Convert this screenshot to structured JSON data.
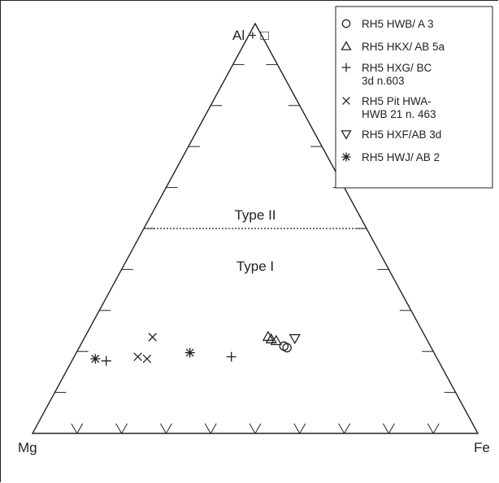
{
  "chart_data": {
    "type": "scatter",
    "subtype": "ternary",
    "vertices": {
      "top": "Al + □",
      "left": "Mg",
      "right": "Fe"
    },
    "ticks_per_side": 9,
    "region_labels": [
      "Type II",
      "Type I"
    ],
    "boundary": {
      "style": "dotted",
      "top_fraction": 0.5
    },
    "legend": {
      "position": "top-right",
      "entries": [
        {
          "marker": "circle",
          "lines": [
            "RH5 HWB/ A 3"
          ]
        },
        {
          "marker": "triangle-up",
          "lines": [
            "RH5 HKX/ AB 5a"
          ]
        },
        {
          "marker": "plus",
          "lines": [
            "RH5 HXG/ BC",
            "3d n.603"
          ]
        },
        {
          "marker": "cross",
          "lines": [
            "RH5 Pit HWA-",
            "HWB 21 n. 463"
          ]
        },
        {
          "marker": "triangle-down",
          "lines": [
            "RH5 HXF/AB 3d"
          ]
        },
        {
          "marker": "asterisk",
          "lines": [
            "RH5 HWJ/ AB 2"
          ]
        }
      ]
    },
    "points": [
      {
        "marker": "asterisk",
        "al": 0.182,
        "fe": 0.05
      },
      {
        "marker": "asterisk",
        "al": 0.197,
        "fe": 0.255
      },
      {
        "marker": "plus",
        "al": 0.177,
        "fe": 0.077
      },
      {
        "marker": "plus",
        "al": 0.187,
        "fe": 0.353
      },
      {
        "marker": "cross",
        "al": 0.235,
        "fe": 0.152
      },
      {
        "marker": "cross",
        "al": 0.187,
        "fe": 0.143
      },
      {
        "marker": "cross",
        "al": 0.182,
        "fe": 0.166
      },
      {
        "marker": "triangle-up",
        "al": 0.236,
        "fe": 0.411
      },
      {
        "marker": "triangle-up",
        "al": 0.23,
        "fe": 0.421
      },
      {
        "marker": "triangle-up",
        "al": 0.226,
        "fe": 0.434
      },
      {
        "marker": "circle",
        "al": 0.213,
        "fe": 0.458
      },
      {
        "marker": "circle",
        "al": 0.209,
        "fe": 0.467
      },
      {
        "marker": "triangle-down",
        "al": 0.232,
        "fe": 0.473
      }
    ]
  }
}
